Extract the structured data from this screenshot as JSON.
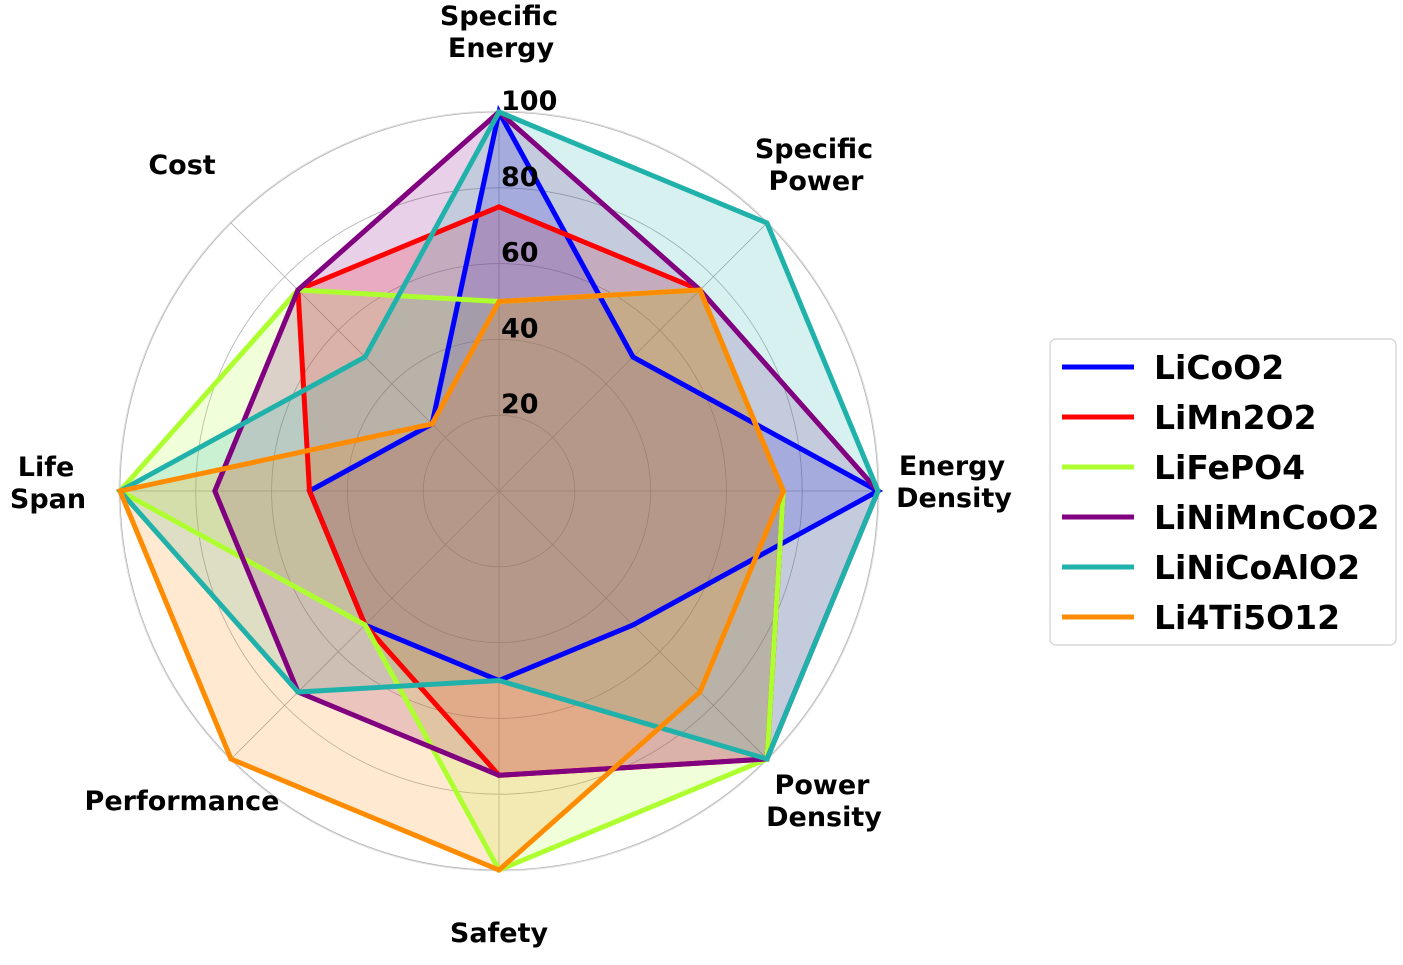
{
  "chart_data": {
    "type": "radar",
    "axes": [
      [
        "Energy",
        "Density"
      ],
      [
        "Specific",
        "Power"
      ],
      [
        "Specific",
        "Energy"
      ],
      [
        "Cost"
      ],
      [
        "Life",
        "Span"
      ],
      [
        "Performance"
      ],
      [
        "Safety"
      ],
      [
        "Power",
        "Density"
      ]
    ],
    "axis_angles_deg": [
      0,
      45,
      90,
      135,
      180,
      225,
      270,
      315
    ],
    "rlim": [
      0,
      100
    ],
    "radial_ticks": [
      20,
      40,
      60,
      80,
      100
    ],
    "radial_tick_labels": [
      "20",
      "40",
      "60",
      "80",
      "100"
    ],
    "grid": true,
    "legend_position": "right",
    "series": [
      {
        "name": "LiCoO2",
        "color": "#0000ff",
        "values": [
          100,
          50,
          100,
          25,
          50,
          50,
          50,
          50
        ]
      },
      {
        "name": "LiMn2O2",
        "color": "#ff0000",
        "values": [
          75,
          75,
          75,
          75,
          50,
          50,
          75,
          100
        ]
      },
      {
        "name": "LiFePO4",
        "color": "#adff2f",
        "values": [
          75,
          75,
          50,
          75,
          100,
          50,
          100,
          100
        ]
      },
      {
        "name": "LiNiMnCoO2",
        "color": "#800080",
        "values": [
          100,
          75,
          100,
          75,
          75,
          75,
          75,
          100
        ]
      },
      {
        "name": "LiNiCoAlO2",
        "color": "#20b2aa",
        "values": [
          100,
          100,
          100,
          50,
          100,
          75,
          50,
          100
        ]
      },
      {
        "name": "Li4Ti5O12",
        "color": "#ff8c00",
        "values": [
          75,
          75,
          50,
          25,
          100,
          100,
          100,
          75
        ]
      }
    ]
  }
}
